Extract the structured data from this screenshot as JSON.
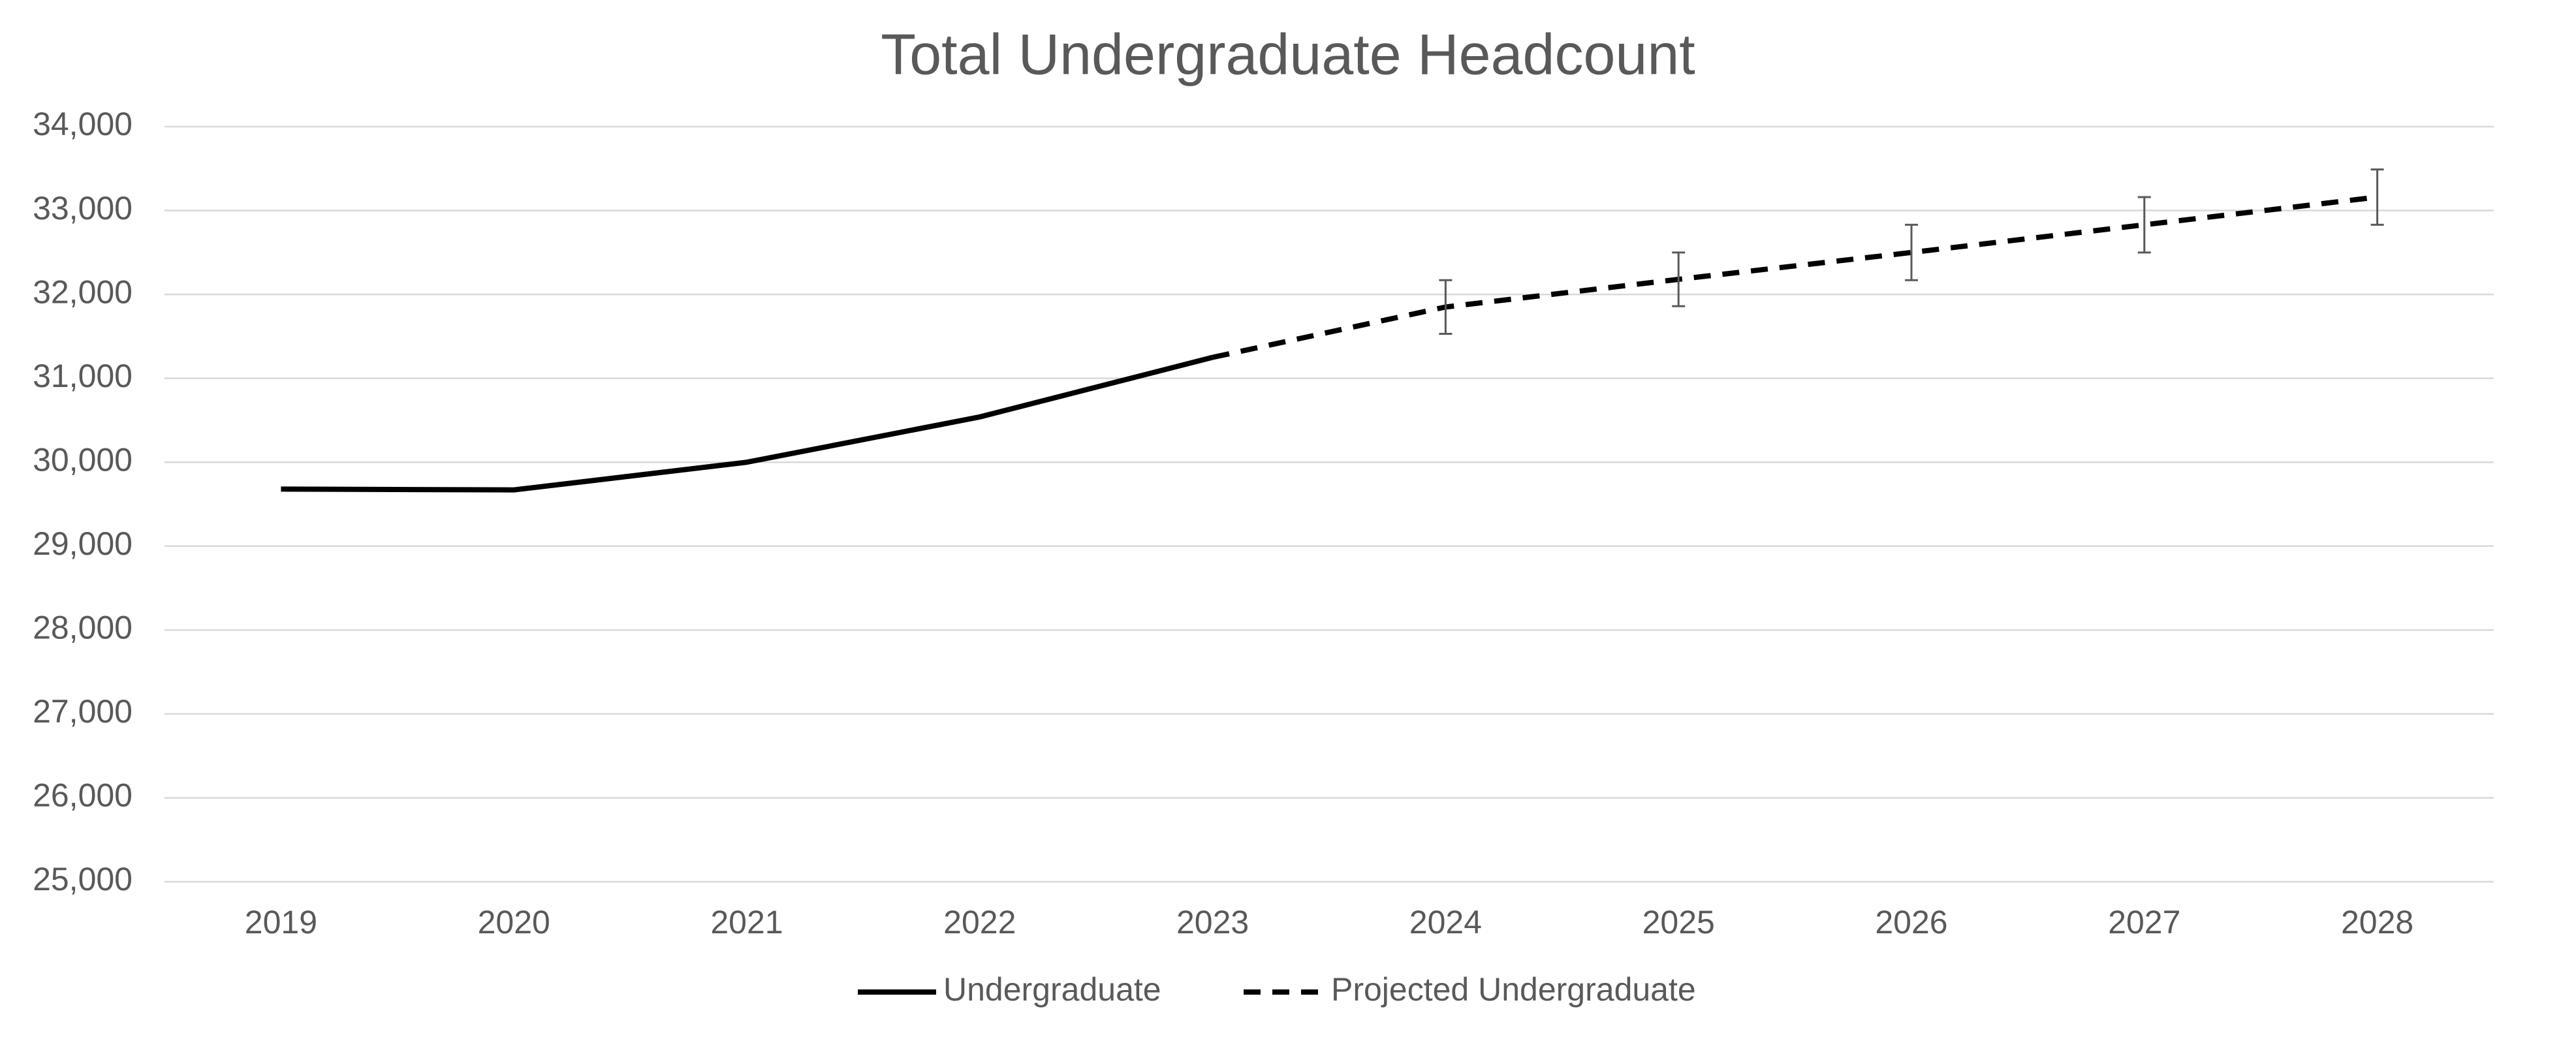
{
  "chart_data": {
    "type": "line",
    "title": "Total Undergraduate Headcount",
    "categories": [
      "2019",
      "2020",
      "2021",
      "2022",
      "2023",
      "2024",
      "2025",
      "2026",
      "2027",
      "2028"
    ],
    "series": [
      {
        "name": "Undergraduate",
        "color": "#000000",
        "dashed": false,
        "values": [
          29680,
          29670,
          30000,
          30540,
          31250,
          null,
          null,
          null,
          null,
          null
        ]
      },
      {
        "name": "Projected Undergraduate",
        "color": "#000000",
        "dashed": true,
        "values": [
          null,
          null,
          null,
          null,
          31250,
          31850,
          32180,
          32500,
          32830,
          33160
        ],
        "errors": [
          null,
          null,
          null,
          null,
          null,
          320,
          320,
          330,
          330,
          330
        ]
      }
    ],
    "ylim": [
      25000,
      34000
    ],
    "yticks": [
      {
        "value": 25000,
        "label": "25,000"
      },
      {
        "value": 26000,
        "label": "26,000"
      },
      {
        "value": 27000,
        "label": "27,000"
      },
      {
        "value": 28000,
        "label": "28,000"
      },
      {
        "value": 29000,
        "label": "29,000"
      },
      {
        "value": 30000,
        "label": "30,000"
      },
      {
        "value": 31000,
        "label": "31,000"
      },
      {
        "value": 32000,
        "label": "32,000"
      },
      {
        "value": 33000,
        "label": "33,000"
      },
      {
        "value": 34000,
        "label": "34,000"
      }
    ],
    "grid": true,
    "legend": "bottom"
  }
}
